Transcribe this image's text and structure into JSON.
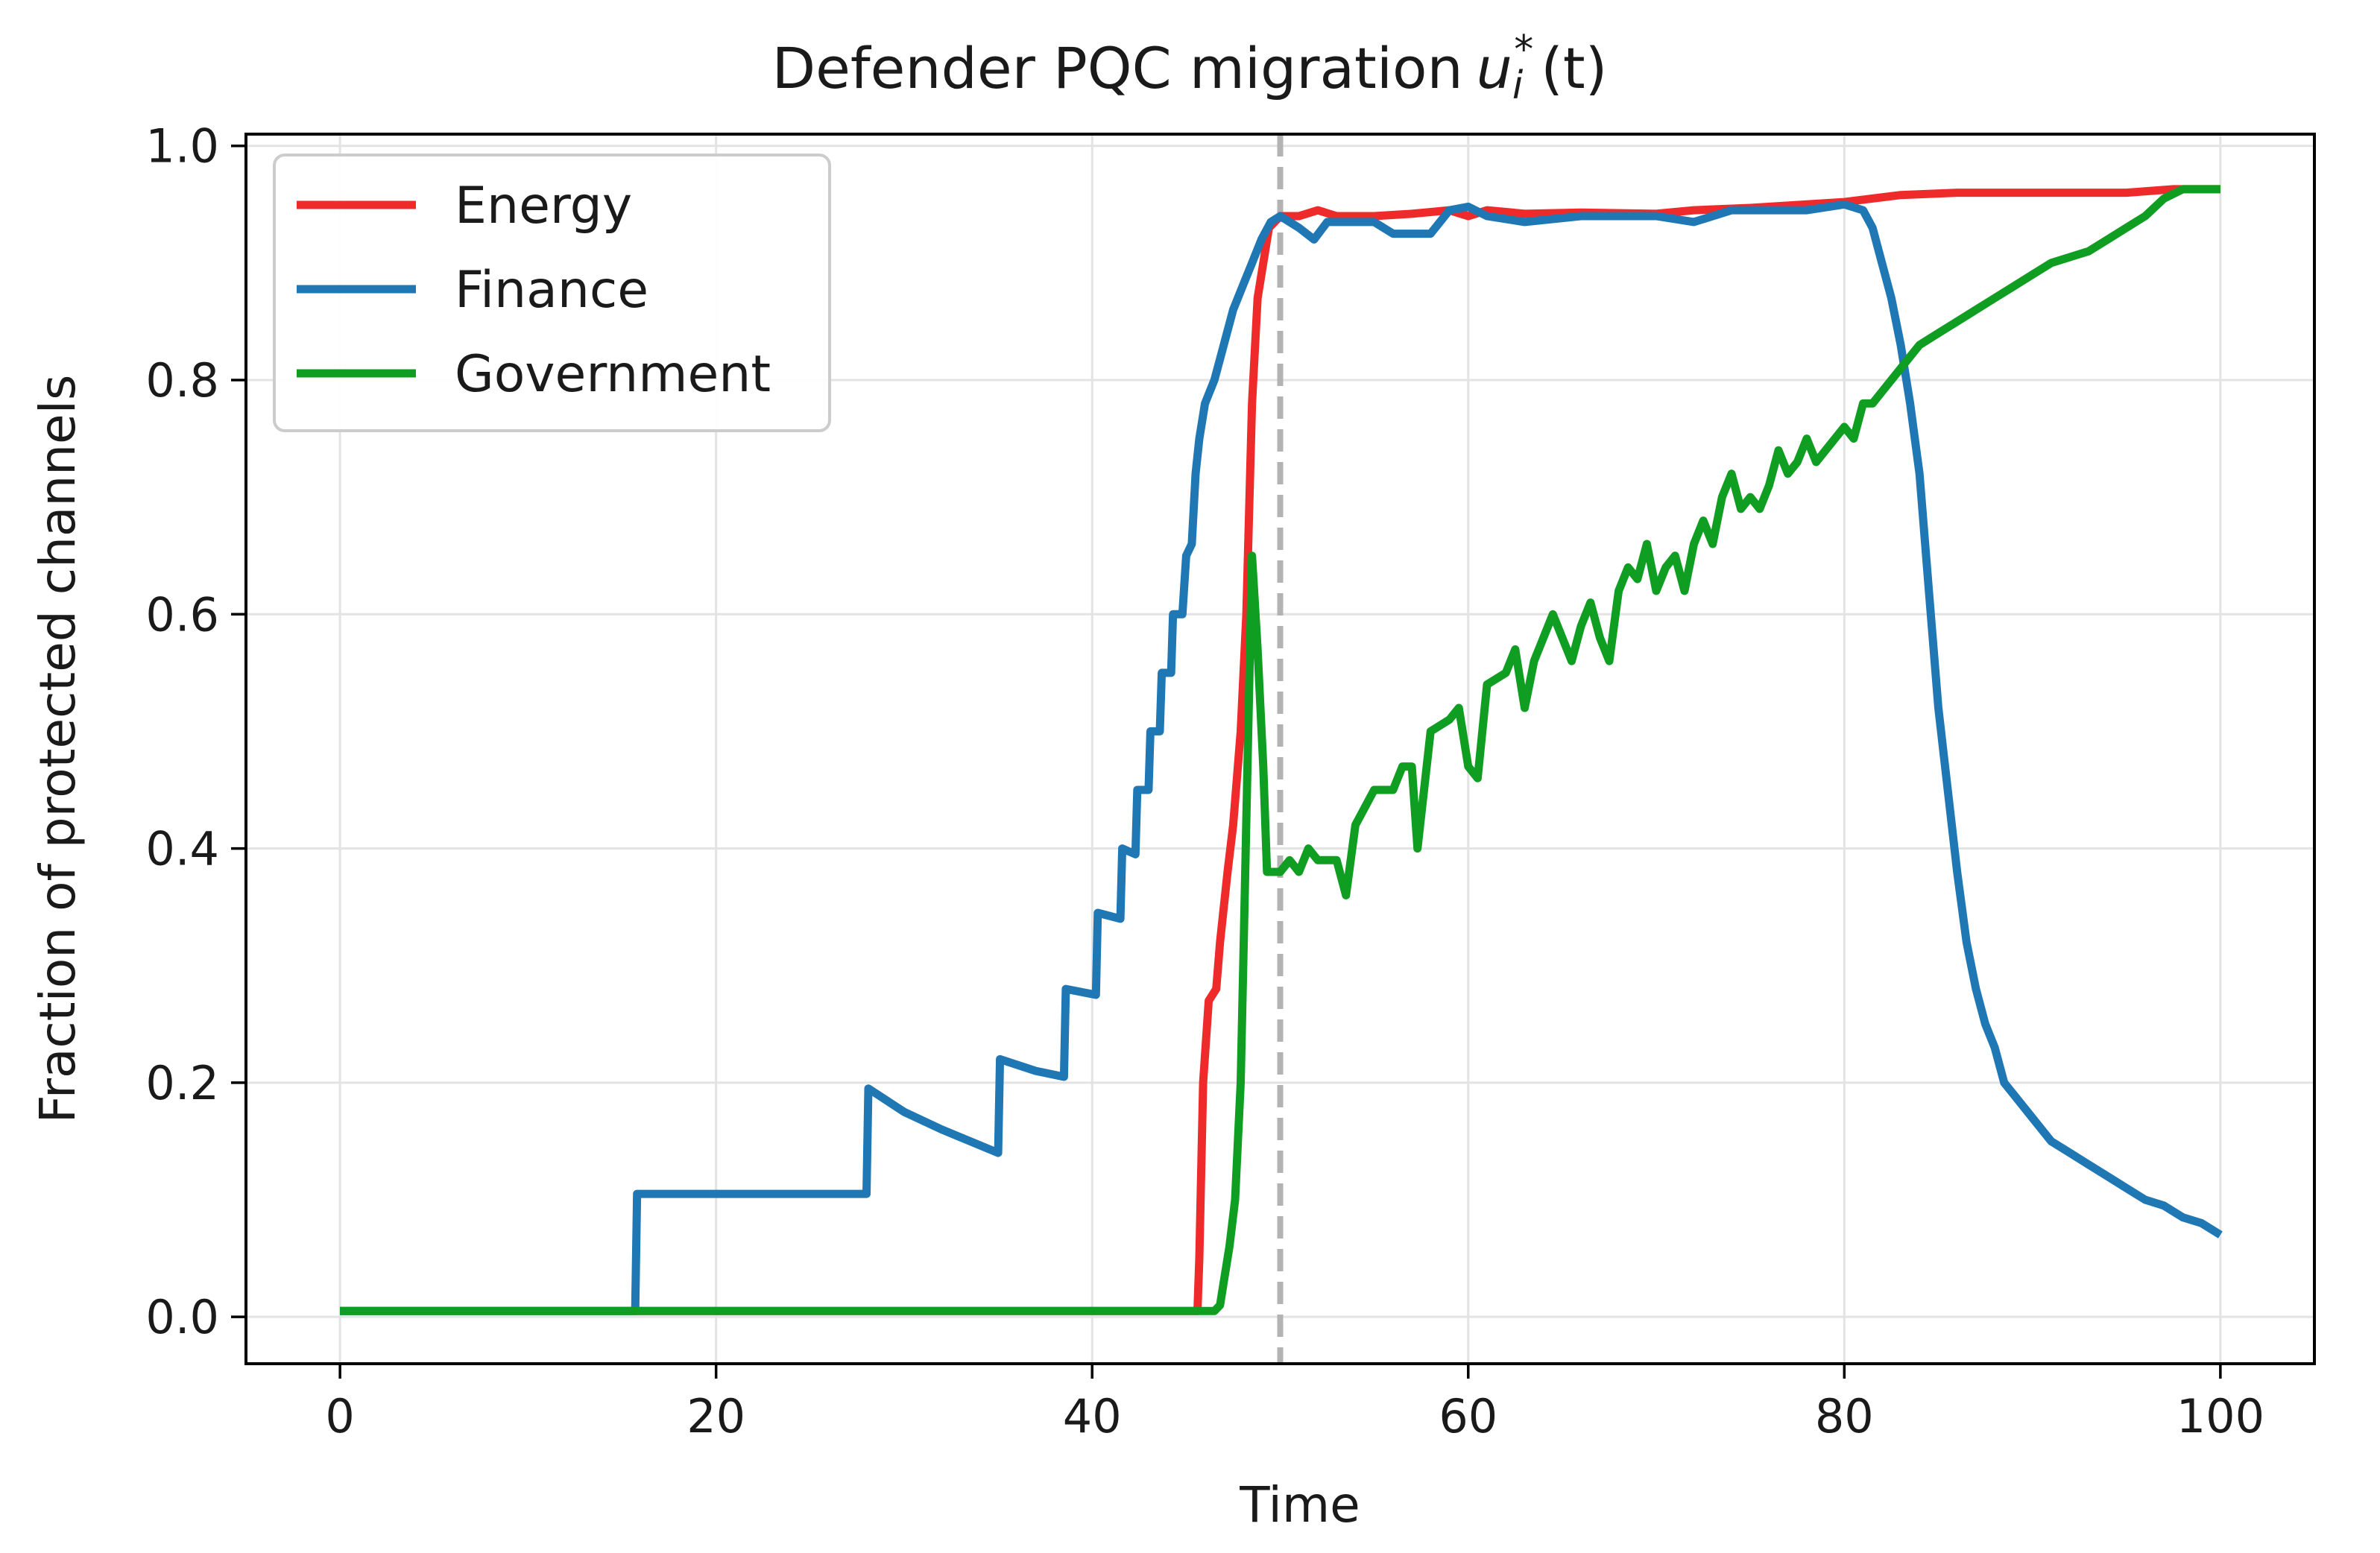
{
  "chart_data": {
    "type": "line",
    "title": "Defender PQC migration",
    "title_math": "u",
    "title_math_sub": "i",
    "title_math_sup": "*",
    "title_math_tail": "(t)",
    "xlabel": "Time",
    "ylabel": "Fraction of protected channels",
    "xlim": [
      -5,
      105
    ],
    "ylim": [
      -0.04,
      1.01
    ],
    "xticks": [
      0,
      20,
      40,
      60,
      80,
      100
    ],
    "xtick_labels": [
      "0",
      "20",
      "40",
      "60",
      "80",
      "100"
    ],
    "yticks": [
      0.0,
      0.2,
      0.4,
      0.6,
      0.8,
      1.0
    ],
    "ytick_labels": [
      "0.0",
      "0.2",
      "0.4",
      "0.6",
      "0.8",
      "1.0"
    ],
    "grid": true,
    "legend_position": "top-left",
    "vline": {
      "x": 50,
      "color": "#b3b3b3",
      "style": "dashed"
    },
    "series": [
      {
        "name": "Energy",
        "color": "#ee2a2a",
        "points": [
          [
            0,
            0.005
          ],
          [
            45.6,
            0.005
          ],
          [
            45.7,
            0.05
          ],
          [
            45.9,
            0.2
          ],
          [
            46.2,
            0.27
          ],
          [
            46.6,
            0.28
          ],
          [
            46.8,
            0.32
          ],
          [
            47.2,
            0.38
          ],
          [
            47.5,
            0.42
          ],
          [
            47.9,
            0.5
          ],
          [
            48.2,
            0.6
          ],
          [
            48.5,
            0.78
          ],
          [
            48.8,
            0.87
          ],
          [
            49.1,
            0.9
          ],
          [
            49.4,
            0.93
          ],
          [
            50,
            0.94
          ],
          [
            51,
            0.94
          ],
          [
            52,
            0.945
          ],
          [
            53,
            0.94
          ],
          [
            55,
            0.94
          ],
          [
            57,
            0.942
          ],
          [
            59,
            0.945
          ],
          [
            60,
            0.94
          ],
          [
            61,
            0.945
          ],
          [
            63,
            0.942
          ],
          [
            66,
            0.943
          ],
          [
            70,
            0.942
          ],
          [
            72,
            0.945
          ],
          [
            75,
            0.947
          ],
          [
            78,
            0.95
          ],
          [
            80,
            0.952
          ],
          [
            83,
            0.958
          ],
          [
            86,
            0.96
          ],
          [
            90,
            0.96
          ],
          [
            95,
            0.96
          ],
          [
            97.5,
            0.963
          ],
          [
            100,
            0.963
          ]
        ]
      },
      {
        "name": "Finance",
        "color": "#1f77b4",
        "points": [
          [
            0,
            0.005
          ],
          [
            15.7,
            0.005
          ],
          [
            15.8,
            0.105
          ],
          [
            28,
            0.105
          ],
          [
            28.1,
            0.195
          ],
          [
            30,
            0.175
          ],
          [
            32,
            0.16
          ],
          [
            35,
            0.14
          ],
          [
            35.1,
            0.22
          ],
          [
            37,
            0.21
          ],
          [
            38.5,
            0.205
          ],
          [
            38.6,
            0.28
          ],
          [
            40.2,
            0.275
          ],
          [
            40.3,
            0.345
          ],
          [
            41.5,
            0.34
          ],
          [
            41.6,
            0.4
          ],
          [
            42.3,
            0.395
          ],
          [
            42.4,
            0.45
          ],
          [
            43,
            0.45
          ],
          [
            43.1,
            0.5
          ],
          [
            43.6,
            0.5
          ],
          [
            43.7,
            0.55
          ],
          [
            44.2,
            0.55
          ],
          [
            44.3,
            0.6
          ],
          [
            44.8,
            0.6
          ],
          [
            45,
            0.65
          ],
          [
            45.3,
            0.66
          ],
          [
            45.5,
            0.72
          ],
          [
            45.7,
            0.75
          ],
          [
            46,
            0.78
          ],
          [
            46.5,
            0.8
          ],
          [
            47,
            0.83
          ],
          [
            47.5,
            0.86
          ],
          [
            48,
            0.88
          ],
          [
            48.5,
            0.9
          ],
          [
            49,
            0.92
          ],
          [
            49.5,
            0.935
          ],
          [
            50,
            0.94
          ],
          [
            51,
            0.93
          ],
          [
            51.8,
            0.92
          ],
          [
            52.5,
            0.935
          ],
          [
            55,
            0.935
          ],
          [
            56,
            0.925
          ],
          [
            58,
            0.925
          ],
          [
            59,
            0.945
          ],
          [
            60,
            0.948
          ],
          [
            61,
            0.94
          ],
          [
            63,
            0.935
          ],
          [
            66,
            0.94
          ],
          [
            67,
            0.94
          ],
          [
            70,
            0.94
          ],
          [
            72,
            0.935
          ],
          [
            74,
            0.945
          ],
          [
            76,
            0.945
          ],
          [
            78,
            0.945
          ],
          [
            80,
            0.95
          ],
          [
            81,
            0.945
          ],
          [
            81.5,
            0.93
          ],
          [
            82,
            0.9
          ],
          [
            82.5,
            0.87
          ],
          [
            83,
            0.83
          ],
          [
            83.5,
            0.78
          ],
          [
            84,
            0.72
          ],
          [
            84.5,
            0.62
          ],
          [
            85,
            0.52
          ],
          [
            85.5,
            0.45
          ],
          [
            86,
            0.38
          ],
          [
            86.5,
            0.32
          ],
          [
            87,
            0.28
          ],
          [
            87.5,
            0.25
          ],
          [
            88,
            0.23
          ],
          [
            88.5,
            0.2
          ],
          [
            89,
            0.19
          ],
          [
            90,
            0.17
          ],
          [
            91,
            0.15
          ],
          [
            92,
            0.14
          ],
          [
            93,
            0.13
          ],
          [
            94,
            0.12
          ],
          [
            95,
            0.11
          ],
          [
            96,
            0.1
          ],
          [
            97,
            0.095
          ],
          [
            98,
            0.085
          ],
          [
            99,
            0.08
          ],
          [
            100,
            0.07
          ]
        ]
      },
      {
        "name": "Government",
        "color": "#0f9d22",
        "points": [
          [
            0,
            0.005
          ],
          [
            46.5,
            0.005
          ],
          [
            46.8,
            0.01
          ],
          [
            47,
            0.03
          ],
          [
            47.3,
            0.06
          ],
          [
            47.6,
            0.1
          ],
          [
            47.9,
            0.2
          ],
          [
            48.1,
            0.35
          ],
          [
            48.3,
            0.5
          ],
          [
            48.5,
            0.65
          ],
          [
            48.8,
            0.57
          ],
          [
            49.1,
            0.47
          ],
          [
            49.3,
            0.38
          ],
          [
            50,
            0.38
          ],
          [
            50.5,
            0.39
          ],
          [
            51,
            0.38
          ],
          [
            51.5,
            0.4
          ],
          [
            52,
            0.39
          ],
          [
            53,
            0.39
          ],
          [
            53.5,
            0.36
          ],
          [
            54,
            0.42
          ],
          [
            55,
            0.45
          ],
          [
            56,
            0.45
          ],
          [
            56.5,
            0.47
          ],
          [
            57,
            0.47
          ],
          [
            57.3,
            0.4
          ],
          [
            58,
            0.5
          ],
          [
            59,
            0.51
          ],
          [
            59.5,
            0.52
          ],
          [
            60,
            0.47
          ],
          [
            60.5,
            0.46
          ],
          [
            61,
            0.54
          ],
          [
            62,
            0.55
          ],
          [
            62.5,
            0.57
          ],
          [
            63,
            0.52
          ],
          [
            63.5,
            0.56
          ],
          [
            64,
            0.58
          ],
          [
            64.5,
            0.6
          ],
          [
            65,
            0.58
          ],
          [
            65.5,
            0.56
          ],
          [
            66,
            0.59
          ],
          [
            66.5,
            0.61
          ],
          [
            67,
            0.58
          ],
          [
            67.5,
            0.56
          ],
          [
            68,
            0.62
          ],
          [
            68.5,
            0.64
          ],
          [
            69,
            0.63
          ],
          [
            69.5,
            0.66
          ],
          [
            70,
            0.62
          ],
          [
            70.5,
            0.64
          ],
          [
            71,
            0.65
          ],
          [
            71.5,
            0.62
          ],
          [
            72,
            0.66
          ],
          [
            72.5,
            0.68
          ],
          [
            73,
            0.66
          ],
          [
            73.5,
            0.7
          ],
          [
            74,
            0.72
          ],
          [
            74.5,
            0.69
          ],
          [
            75,
            0.7
          ],
          [
            75.5,
            0.69
          ],
          [
            76,
            0.71
          ],
          [
            76.5,
            0.74
          ],
          [
            77,
            0.72
          ],
          [
            77.5,
            0.73
          ],
          [
            78,
            0.75
          ],
          [
            78.5,
            0.73
          ],
          [
            79,
            0.74
          ],
          [
            80,
            0.76
          ],
          [
            80.5,
            0.75
          ],
          [
            81,
            0.78
          ],
          [
            81.5,
            0.78
          ],
          [
            82,
            0.79
          ],
          [
            82.5,
            0.8
          ],
          [
            83,
            0.81
          ],
          [
            83.5,
            0.82
          ],
          [
            84,
            0.83
          ],
          [
            85,
            0.84
          ],
          [
            86,
            0.85
          ],
          [
            87,
            0.86
          ],
          [
            88,
            0.87
          ],
          [
            89,
            0.88
          ],
          [
            90,
            0.89
          ],
          [
            91,
            0.9
          ],
          [
            92,
            0.905
          ],
          [
            93,
            0.91
          ],
          [
            94,
            0.92
          ],
          [
            95,
            0.93
          ],
          [
            96,
            0.94
          ],
          [
            97,
            0.955
          ],
          [
            98,
            0.963
          ],
          [
            100,
            0.963
          ]
        ]
      }
    ]
  }
}
